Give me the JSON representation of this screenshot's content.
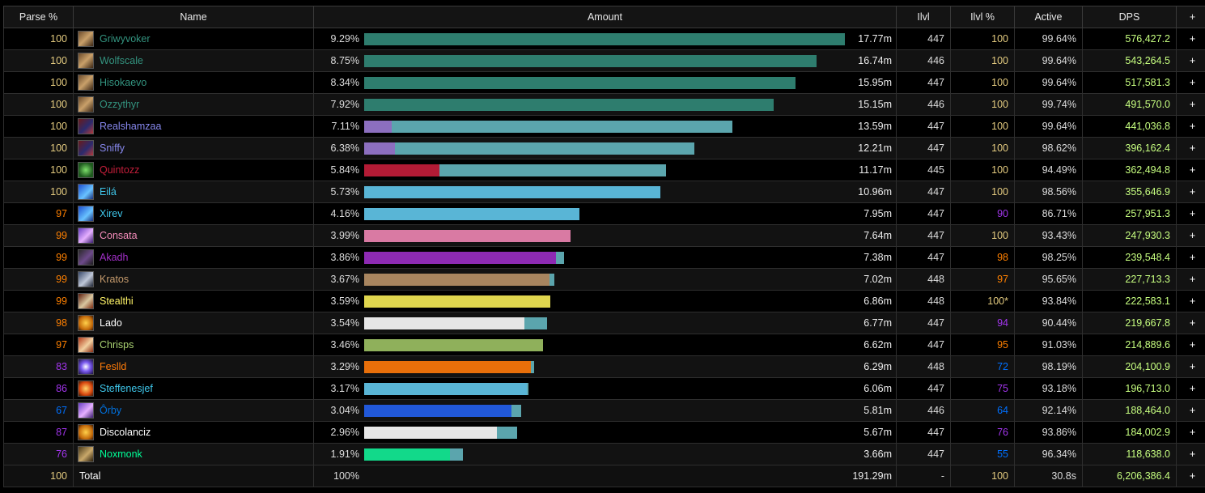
{
  "columns": {
    "parse": "Parse %",
    "name": "Name",
    "amount": "Amount",
    "ilvl": "Ilvl",
    "ilvl_pct": "Ilvl %",
    "active": "Active",
    "dps": "DPS",
    "plus": "+"
  },
  "colors": {
    "parse_legendary": "#e5cc80",
    "parse_epic_orange": "#ff8000",
    "parse_purple": "#a335ee",
    "parse_blue": "#0070ff",
    "dps_green": "#c7ff80"
  },
  "rows": [
    {
      "parse": "100",
      "name": "Griwyvoker",
      "class_color": "#33937f",
      "icon": "evoker-icon",
      "pct": "9.29%",
      "fraction": 0.0929,
      "split": [
        1.0
      ],
      "bar_colors": [
        "#2e7d6e"
      ],
      "amount": "17.77m",
      "ilvl": "447",
      "ilvl_pct": "100",
      "active": "99.64%",
      "dps": "576,427.2",
      "plus": "+"
    },
    {
      "parse": "100",
      "name": "Wolfscale",
      "class_color": "#33937f",
      "icon": "evoker-icon",
      "pct": "8.75%",
      "fraction": 0.0875,
      "split": [
        1.0
      ],
      "bar_colors": [
        "#2e7d6e"
      ],
      "amount": "16.74m",
      "ilvl": "446",
      "ilvl_pct": "100",
      "active": "99.64%",
      "dps": "543,264.5",
      "plus": "+"
    },
    {
      "parse": "100",
      "name": "Hisokaevo",
      "class_color": "#33937f",
      "icon": "evoker-icon",
      "pct": "8.34%",
      "fraction": 0.0834,
      "split": [
        1.0
      ],
      "bar_colors": [
        "#2e7d6e"
      ],
      "amount": "15.95m",
      "ilvl": "447",
      "ilvl_pct": "100",
      "active": "99.64%",
      "dps": "517,581.3",
      "plus": "+"
    },
    {
      "parse": "100",
      "name": "Ozzythyr",
      "class_color": "#33937f",
      "icon": "evoker-icon",
      "pct": "7.92%",
      "fraction": 0.0792,
      "split": [
        1.0
      ],
      "bar_colors": [
        "#2e7d6e"
      ],
      "amount": "15.15m",
      "ilvl": "446",
      "ilvl_pct": "100",
      "active": "99.74%",
      "dps": "491,570.0",
      "plus": "+"
    },
    {
      "parse": "100",
      "name": "Realshamzaa",
      "class_color": "#8788ee",
      "icon": "warlock-icon",
      "pct": "7.11%",
      "fraction": 0.0711,
      "split": [
        0.075,
        0.925
      ],
      "bar_colors": [
        "#8c6fbf",
        "#5ba5ad"
      ],
      "amount": "13.59m",
      "ilvl": "447",
      "ilvl_pct": "100",
      "active": "99.64%",
      "dps": "441,036.8",
      "plus": "+"
    },
    {
      "parse": "100",
      "name": "Sniffy",
      "class_color": "#8788ee",
      "icon": "warlock-icon",
      "pct": "6.38%",
      "fraction": 0.0638,
      "split": [
        0.092,
        0.908
      ],
      "bar_colors": [
        "#8c6fbf",
        "#5ba5ad"
      ],
      "amount": "12.21m",
      "ilvl": "447",
      "ilvl_pct": "100",
      "active": "98.62%",
      "dps": "396,162.4",
      "plus": "+"
    },
    {
      "parse": "100",
      "name": "Quintozz",
      "class_color": "#c41e3a",
      "icon": "death-knight-icon",
      "pct": "5.84%",
      "fraction": 0.0584,
      "split": [
        0.25,
        0.75
      ],
      "bar_colors": [
        "#b31b35",
        "#5ba5ad"
      ],
      "amount": "11.17m",
      "ilvl": "445",
      "ilvl_pct": "100",
      "active": "94.49%",
      "dps": "362,494.8",
      "plus": "+"
    },
    {
      "parse": "100",
      "name": "Eilá",
      "class_color": "#3fc7eb",
      "icon": "mage-icon",
      "pct": "5.73%",
      "fraction": 0.0573,
      "split": [
        1.0
      ],
      "bar_colors": [
        "#59b5d6"
      ],
      "amount": "10.96m",
      "ilvl": "447",
      "ilvl_pct": "100",
      "active": "98.56%",
      "dps": "355,646.9",
      "plus": "+"
    },
    {
      "parse": "97",
      "name": "Xirev",
      "class_color": "#3fc7eb",
      "icon": "mage-icon",
      "pct": "4.16%",
      "fraction": 0.0416,
      "split": [
        1.0
      ],
      "bar_colors": [
        "#59b5d6"
      ],
      "amount": "7.95m",
      "ilvl": "447",
      "ilvl_pct": "90",
      "active": "86.71%",
      "dps": "257,951.3",
      "plus": "+"
    },
    {
      "parse": "99",
      "name": "Consata",
      "class_color": "#f48cba",
      "icon": "paladin-icon",
      "pct": "3.99%",
      "fraction": 0.0399,
      "split": [
        1.0
      ],
      "bar_colors": [
        "#d97aa3"
      ],
      "amount": "7.64m",
      "ilvl": "447",
      "ilvl_pct": "100",
      "active": "93.43%",
      "dps": "247,930.3",
      "plus": "+"
    },
    {
      "parse": "99",
      "name": "Akadh",
      "class_color": "#a330c9",
      "icon": "demon-hunter-icon",
      "pct": "3.86%",
      "fraction": 0.0386,
      "split": [
        0.96,
        0.04
      ],
      "bar_colors": [
        "#8d2ab3",
        "#5ba5ad"
      ],
      "amount": "7.38m",
      "ilvl": "447",
      "ilvl_pct": "98",
      "active": "98.25%",
      "dps": "239,548.4",
      "plus": "+"
    },
    {
      "parse": "99",
      "name": "Kratos",
      "class_color": "#c69b6d",
      "icon": "warrior-icon",
      "pct": "3.67%",
      "fraction": 0.0367,
      "split": [
        0.975,
        0.025
      ],
      "bar_colors": [
        "#a8855f",
        "#5ba5ad"
      ],
      "amount": "7.02m",
      "ilvl": "448",
      "ilvl_pct": "97",
      "active": "95.65%",
      "dps": "227,713.3",
      "plus": "+"
    },
    {
      "parse": "99",
      "name": "Stealthi",
      "class_color": "#fff468",
      "icon": "rogue-icon",
      "pct": "3.59%",
      "fraction": 0.0359,
      "split": [
        1.0
      ],
      "bar_colors": [
        "#e0d64e"
      ],
      "amount": "6.86m",
      "ilvl": "448",
      "ilvl_pct": "100*",
      "active": "93.84%",
      "dps": "222,583.1",
      "plus": "+"
    },
    {
      "parse": "98",
      "name": "Lado",
      "class_color": "#ffffff",
      "icon": "priest-icon",
      "pct": "3.54%",
      "fraction": 0.0354,
      "split": [
        0.876,
        0.124
      ],
      "bar_colors": [
        "#e6e6e6",
        "#5ba5ad"
      ],
      "amount": "6.77m",
      "ilvl": "447",
      "ilvl_pct": "94",
      "active": "90.44%",
      "dps": "219,667.8",
      "plus": "+"
    },
    {
      "parse": "97",
      "name": "Chrisps",
      "class_color": "#aad372",
      "icon": "hunter-icon",
      "pct": "3.46%",
      "fraction": 0.0346,
      "split": [
        1.0
      ],
      "bar_colors": [
        "#8fb05b"
      ],
      "amount": "6.62m",
      "ilvl": "447",
      "ilvl_pct": "95",
      "active": "91.03%",
      "dps": "214,889.6",
      "plus": "+"
    },
    {
      "parse": "83",
      "name": "Feslld",
      "class_color": "#ff7c0a",
      "icon": "druid-icon",
      "pct": "3.29%",
      "fraction": 0.0329,
      "split": [
        0.98,
        0.02
      ],
      "bar_colors": [
        "#e86f0a",
        "#5ba5ad"
      ],
      "amount": "6.29m",
      "ilvl": "448",
      "ilvl_pct": "72",
      "active": "98.19%",
      "dps": "204,100.9",
      "plus": "+"
    },
    {
      "parse": "86",
      "name": "Steffenesjef",
      "class_color": "#3fc7eb",
      "icon": "fire-mage-icon",
      "pct": "3.17%",
      "fraction": 0.0317,
      "split": [
        0.99,
        0.01
      ],
      "bar_colors": [
        "#59b5d6",
        "#5ba5ad"
      ],
      "amount": "6.06m",
      "ilvl": "447",
      "ilvl_pct": "75",
      "active": "93.18%",
      "dps": "196,713.0",
      "plus": "+"
    },
    {
      "parse": "67",
      "name": "Ôrby",
      "class_color": "#0070dd",
      "icon": "paladin-icon",
      "pct": "3.04%",
      "fraction": 0.0304,
      "split": [
        0.94,
        0.06
      ],
      "bar_colors": [
        "#2158d9",
        "#5ba5ad"
      ],
      "amount": "5.81m",
      "ilvl": "446",
      "ilvl_pct": "64",
      "active": "92.14%",
      "dps": "188,464.0",
      "plus": "+"
    },
    {
      "parse": "87",
      "name": "Discolanciz",
      "class_color": "#ffffff",
      "icon": "priest-icon",
      "pct": "2.96%",
      "fraction": 0.0296,
      "split": [
        0.87,
        0.13
      ],
      "bar_colors": [
        "#e6e6e6",
        "#5ba5ad"
      ],
      "amount": "5.67m",
      "ilvl": "447",
      "ilvl_pct": "76",
      "active": "93.86%",
      "dps": "184,002.9",
      "plus": "+"
    },
    {
      "parse": "76",
      "name": "Noxmonk",
      "class_color": "#00ff98",
      "icon": "monk-icon",
      "pct": "1.91%",
      "fraction": 0.0191,
      "split": [
        0.87,
        0.13
      ],
      "bar_colors": [
        "#12d98a",
        "#5ba5ad"
      ],
      "amount": "3.66m",
      "ilvl": "447",
      "ilvl_pct": "55",
      "active": "96.34%",
      "dps": "118,638.0",
      "plus": "+"
    }
  ],
  "total": {
    "parse": "100",
    "name": "Total",
    "pct": "100%",
    "amount": "191.29m",
    "ilvl": "-",
    "ilvl_pct": "100",
    "active": "30.8s",
    "dps": "6,206,386.4",
    "plus": "+"
  }
}
